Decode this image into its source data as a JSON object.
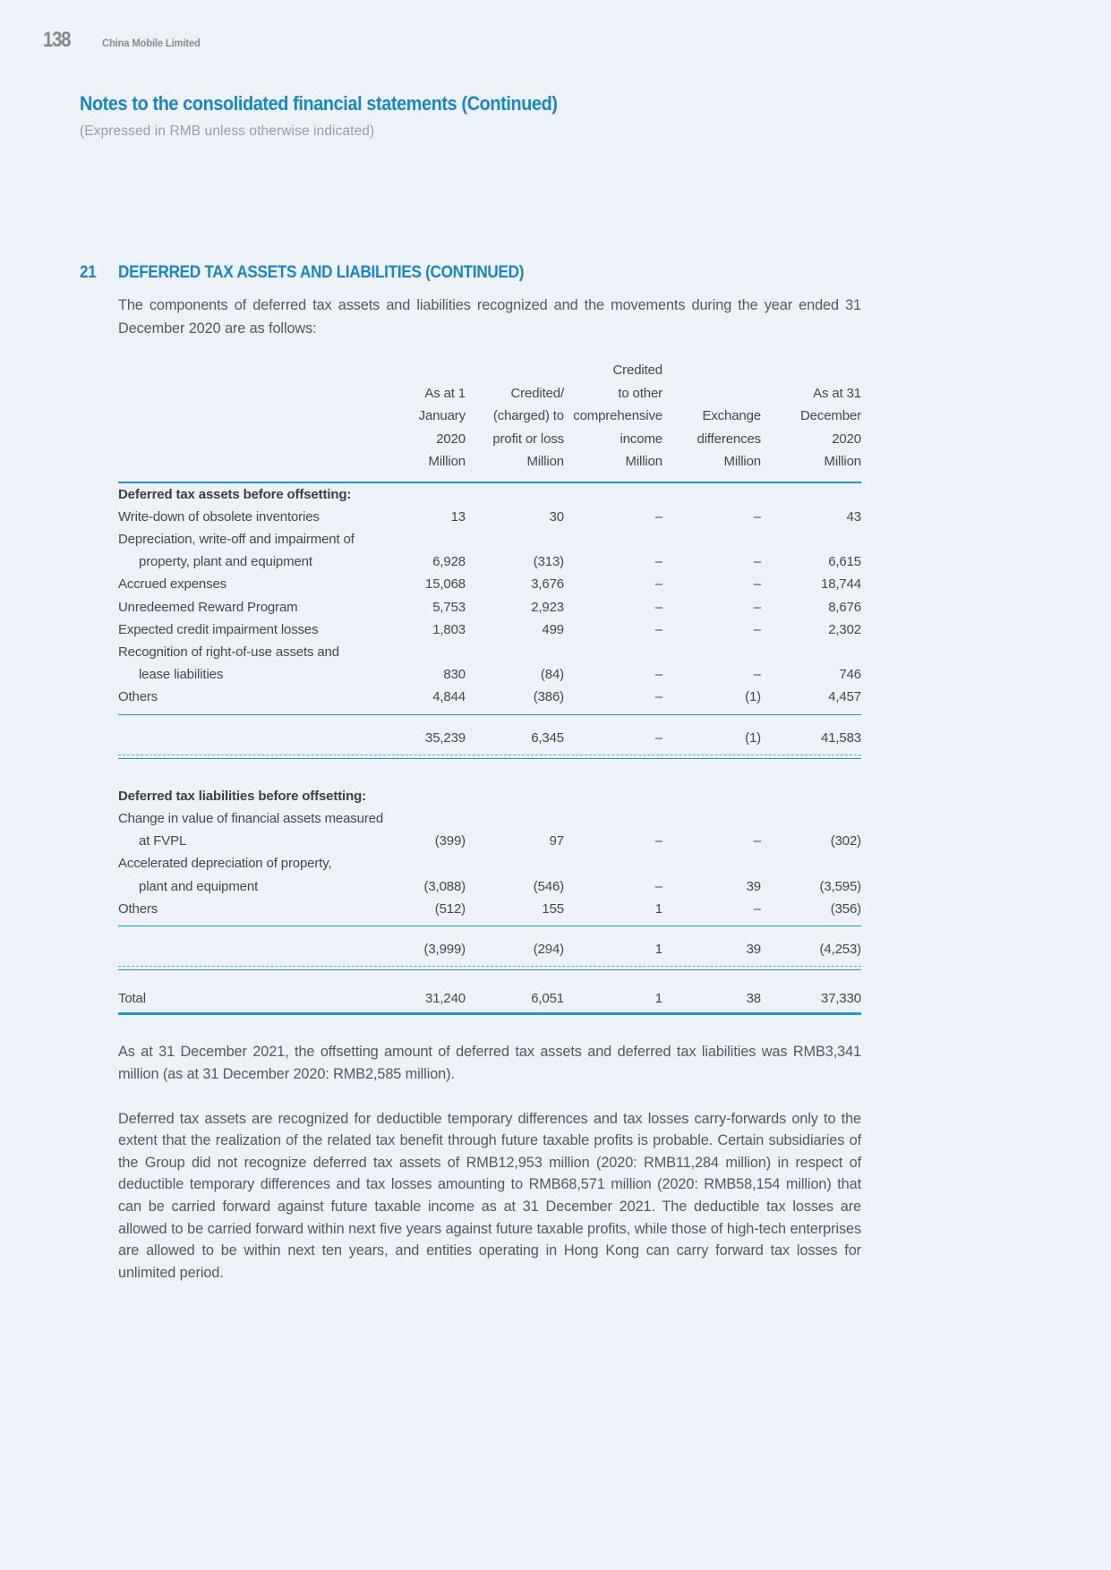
{
  "page": {
    "number": "138",
    "company": "China Mobile Limited"
  },
  "header": {
    "title": "Notes to the consolidated financial statements (Continued)",
    "subtitle": "(Expressed in RMB unless otherwise indicated)"
  },
  "section": {
    "number": "21",
    "title": "DEFERRED TAX ASSETS AND LIABILITIES (CONTINUED)",
    "intro": "The components of deferred tax assets and liabilities recognized and the movements during the year ended 31 December 2020 are as follows:"
  },
  "table": {
    "columns": [
      {
        "lines": [
          "As at 1",
          "January",
          "2020",
          "Million"
        ]
      },
      {
        "lines": [
          "Credited/",
          "(charged) to",
          "profit or loss",
          "Million"
        ]
      },
      {
        "lines": [
          "Credited",
          "to other",
          "comprehensive",
          "income",
          "Million"
        ]
      },
      {
        "lines": [
          "Exchange",
          "differences",
          "Million"
        ]
      },
      {
        "lines": [
          "As at 31",
          "December",
          "2020",
          "Million"
        ]
      }
    ],
    "sections": [
      {
        "heading": "Deferred tax assets before offsetting:",
        "rows": [
          {
            "lines": [
              "Write-down of obsolete inventories"
            ],
            "values": [
              "13",
              "30",
              "–",
              "–",
              "43"
            ]
          },
          {
            "lines": [
              "Depreciation, write-off and impairment of",
              "property, plant and equipment"
            ],
            "values": [
              "6,928",
              "(313)",
              "–",
              "–",
              "6,615"
            ]
          },
          {
            "lines": [
              "Accrued expenses"
            ],
            "values": [
              "15,068",
              "3,676",
              "–",
              "–",
              "18,744"
            ]
          },
          {
            "lines": [
              "Unredeemed Reward Program"
            ],
            "values": [
              "5,753",
              "2,923",
              "–",
              "–",
              "8,676"
            ]
          },
          {
            "lines": [
              "Expected credit impairment losses"
            ],
            "values": [
              "1,803",
              "499",
              "–",
              "–",
              "2,302"
            ]
          },
          {
            "lines": [
              "Recognition of right-of-use assets and",
              "lease liabilities"
            ],
            "values": [
              "830",
              "(84)",
              "–",
              "–",
              "746"
            ]
          },
          {
            "lines": [
              "Others"
            ],
            "values": [
              "4,844",
              "(386)",
              "–",
              "(1)",
              "4,457"
            ]
          }
        ],
        "subtotal": [
          "35,239",
          "6,345",
          "–",
          "(1)",
          "41,583"
        ]
      },
      {
        "heading": "Deferred tax liabilities before offsetting:",
        "rows": [
          {
            "lines": [
              "Change in value of financial assets measured",
              "at FVPL"
            ],
            "values": [
              "(399)",
              "97",
              "–",
              "–",
              "(302)"
            ]
          },
          {
            "lines": [
              "Accelerated depreciation of property,",
              "plant and equipment"
            ],
            "values": [
              "(3,088)",
              "(546)",
              "–",
              "39",
              "(3,595)"
            ]
          },
          {
            "lines": [
              "Others"
            ],
            "values": [
              "(512)",
              "155",
              "1",
              "–",
              "(356)"
            ]
          }
        ],
        "subtotal": [
          "(3,999)",
          "(294)",
          "1",
          "39",
          "(4,253)"
        ]
      }
    ],
    "total": {
      "label": "Total",
      "values": [
        "31,240",
        "6,051",
        "1",
        "38",
        "37,330"
      ]
    }
  },
  "paragraphs": [
    "As at 31 December 2021, the offsetting amount of deferred tax assets and deferred tax liabilities was RMB3,341 million (as at 31 December 2020: RMB2,585 million).",
    "Deferred tax assets are recognized for deductible temporary differences and tax losses carry-forwards only to the extent that the realization of the related tax benefit through future taxable profits is probable. Certain subsidiaries of the Group did not recognize deferred tax assets of RMB12,953 million (2020: RMB11,284 million) in respect of deductible temporary differences and tax losses amounting to RMB68,571 million (2020: RMB58,154 million) that can be carried forward against future taxable income as at 31 December 2021. The deductible tax losses are allowed to be carried forward within next five years against future taxable profits, while those of high-tech enterprises are allowed to be within next ten years, and entities operating in Hong Kong can carry forward tax losses for unlimited period."
  ],
  "colors": {
    "accent_blue": "#1687c8",
    "rule_blue": "#2095c8",
    "dashed_blue": "#55aed7",
    "background": "#edf1f8",
    "text": "#45484c",
    "muted": "#9b9ea3"
  }
}
